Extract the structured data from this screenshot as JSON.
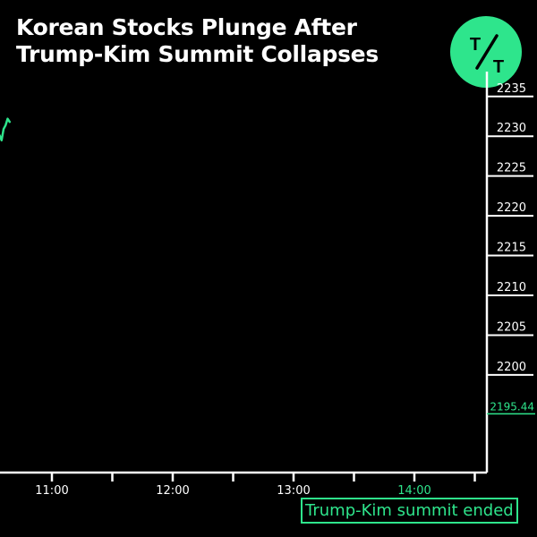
{
  "title_lines": [
    "Korean Stocks Plunge After",
    "Trump-Kim Summit Collapses"
  ],
  "logo": {
    "text_top": "T",
    "text_bottom": "T",
    "color": "#2ee58c"
  },
  "event": {
    "label": "Trump-Kim summit ended",
    "time": "14:00"
  },
  "colors": {
    "background": "#000000",
    "accent": "#2ee58c",
    "axis": "#ffffff"
  },
  "chart_data": {
    "type": "line",
    "title": "Korean Stocks Plunge After Trump-Kim Summit Collapses",
    "xlabel": "",
    "ylabel": "",
    "x_ticks": [
      "11:00",
      "12:00",
      "13:00",
      "14:00"
    ],
    "y_ticks": [
      2200,
      2205,
      2210,
      2215,
      2220,
      2225,
      2230,
      2235
    ],
    "ylim": [
      2192,
      2237
    ],
    "last_value": "2195.44",
    "highlight_tick": "14:00",
    "series": [
      {
        "x": [
          "10:33",
          "10:34",
          "10:35",
          "10:36",
          "10:37",
          "10:38",
          "10:39"
        ],
        "y": [
          2229.6,
          2230.1,
          2229.5,
          2230.9,
          2231.4,
          2232.2,
          2231.8
        ]
      }
    ]
  }
}
